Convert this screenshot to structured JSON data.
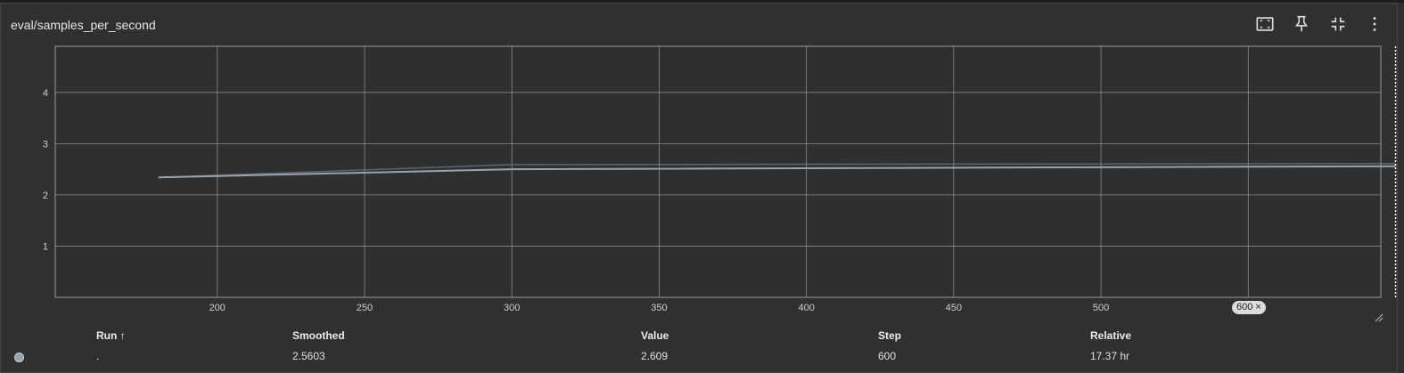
{
  "card": {
    "title": "eval/samples_per_second"
  },
  "toolbar": {
    "icons": [
      "fit-to-data-icon",
      "pin-icon",
      "collapse-icon",
      "more-vert-icon"
    ]
  },
  "chart_data": {
    "type": "line",
    "title": "eval/samples_per_second",
    "xlabel": "",
    "ylabel": "",
    "xlim": [
      145,
      595
    ],
    "ylim": [
      0,
      4.9
    ],
    "x_ticks": [
      200,
      250,
      300,
      350,
      400,
      450,
      500,
      550
    ],
    "y_ticks": [
      1,
      2,
      3,
      4
    ],
    "grid": true,
    "series": [
      {
        "raw": true,
        "color": "#707c87",
        "x": [
          180,
          300,
          600
        ],
        "y": [
          2.34,
          2.59,
          2.609
        ]
      },
      {
        "raw": false,
        "color": "#9aa3ad",
        "x": [
          180,
          300,
          600
        ],
        "y": [
          2.34,
          2.5,
          2.5603
        ]
      }
    ],
    "cursor_step": 600
  },
  "step_pill": {
    "label": "600",
    "close": "×"
  },
  "table": {
    "headers": {
      "run": "Run ↑",
      "smoothed": "Smoothed",
      "value": "Value",
      "step": "Step",
      "relative": "Relative"
    },
    "rows": [
      {
        "run": ".",
        "smoothed": "2.5603",
        "value": "2.609",
        "step": "600",
        "relative": "17.37 hr",
        "color": "#9aa3ad"
      }
    ]
  }
}
